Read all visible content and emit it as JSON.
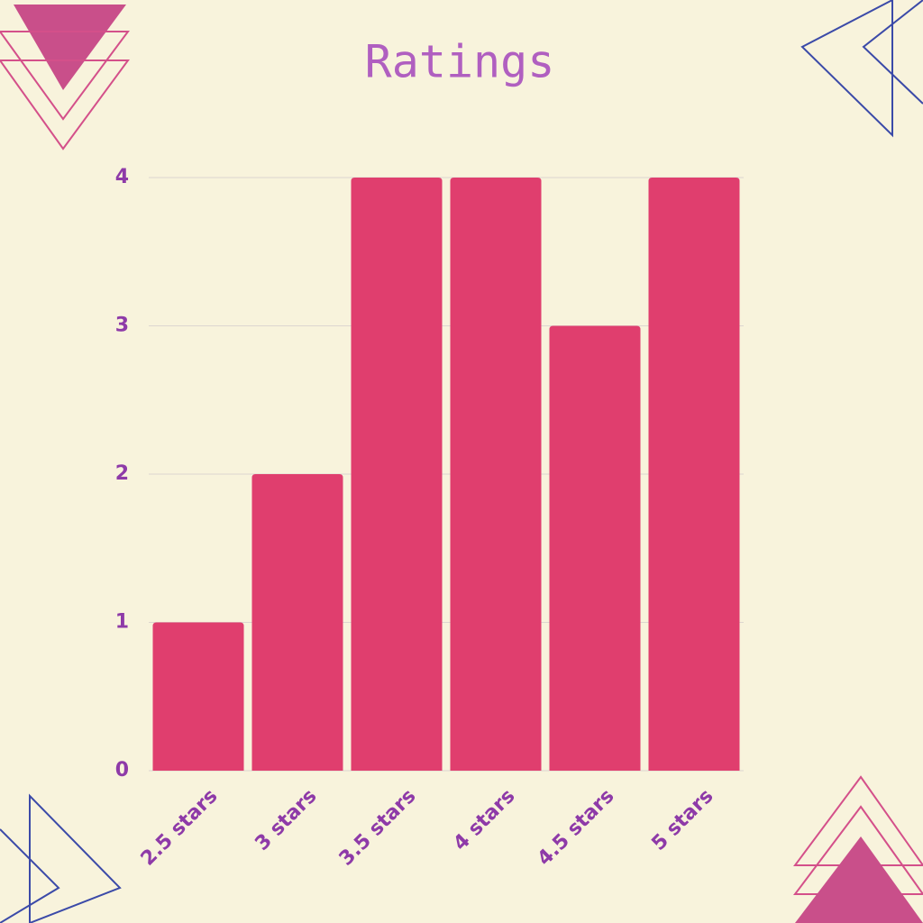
{
  "chart_data": {
    "type": "bar",
    "title": "Ratings",
    "categories": [
      "2.5 stars",
      "3 stars",
      "3.5 stars",
      "4 stars",
      "4.5 stars",
      "5 stars"
    ],
    "values": [
      1,
      2,
      4,
      4,
      3,
      4
    ],
    "color": "#e03e6e",
    "ylim": [
      0,
      4
    ],
    "yticks": [
      0,
      1,
      2,
      3,
      4
    ],
    "grid": true
  }
}
